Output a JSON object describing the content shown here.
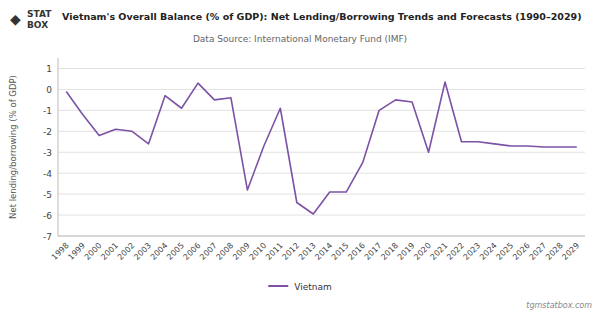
{
  "chart_data": {
    "type": "line",
    "title": "Vietnam's Overall Balance (% of GDP): Net Lending/Borrowing Trends and Forecasts (1990–2029)",
    "subtitle": "Data Source: International Monetary Fund (IMF)",
    "y_label": "Net lending/borrowing (% of GDP)",
    "annotations": [
      "◆",
      "STAT",
      "BOX",
      "tgmstatbox.com"
    ],
    "x": [
      1998,
      1999,
      2000,
      2001,
      2002,
      2003,
      2004,
      2005,
      2006,
      2007,
      2008,
      2009,
      2010,
      2011,
      2012,
      2013,
      2014,
      2015,
      2016,
      2017,
      2018,
      2019,
      2020,
      2021,
      2022,
      2023,
      2024,
      2025,
      2026,
      2027,
      2028,
      2029
    ],
    "series": [
      {
        "name": "Vietnam",
        "color": "#7B52A6",
        "values": [
          -0.1,
          -1.2,
          -2.2,
          -1.9,
          -2.0,
          -2.6,
          -0.3,
          -0.9,
          0.3,
          -0.5,
          -0.4,
          -4.8,
          -2.7,
          -0.9,
          -5.4,
          -5.95,
          -4.9,
          -4.9,
          -3.5,
          -1.0,
          -0.5,
          -0.6,
          -3.0,
          0.35,
          -2.5,
          -2.5,
          -2.6,
          -2.7,
          -2.7,
          -2.75,
          -2.75,
          -2.75
        ]
      }
    ],
    "xlim": [
      1997.5,
      2029.5
    ],
    "xticks": [
      1998,
      1999,
      2000,
      2001,
      2002,
      2003,
      2004,
      2005,
      2006,
      2007,
      2008,
      2009,
      2010,
      2011,
      2012,
      2013,
      2014,
      2015,
      2016,
      2017,
      2018,
      2019,
      2020,
      2021,
      2022,
      2023,
      2024,
      2025,
      2026,
      2027,
      2028,
      2029
    ],
    "ylim": [
      -7,
      1.5
    ],
    "yticks": [
      -7,
      -6,
      -5,
      -4,
      -3,
      -2,
      -1,
      0,
      1
    ],
    "grid": true,
    "legend": "bottom"
  }
}
